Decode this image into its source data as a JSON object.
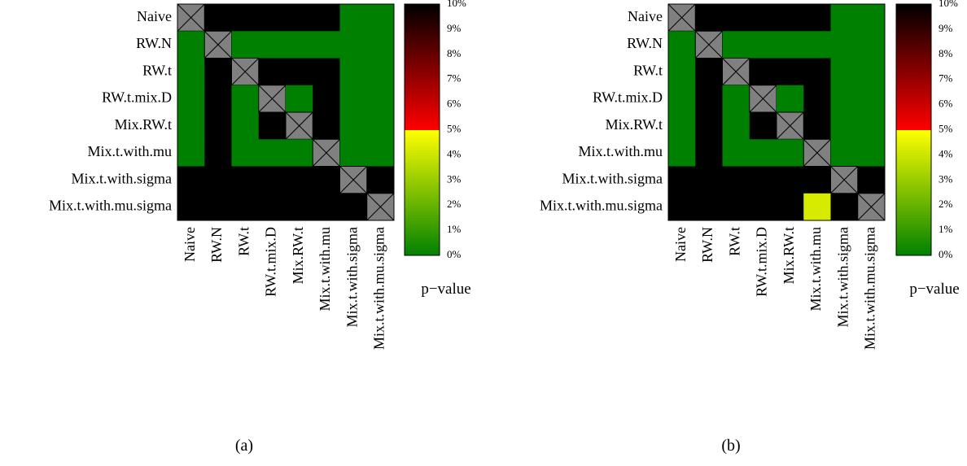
{
  "chart_data": [
    {
      "type": "heatmap",
      "caption": "(a)",
      "labels": [
        "Naive",
        "RW.N",
        "RW.t",
        "RW.t.mix.D",
        "Mix.RW.t",
        "Mix.t.with.mu",
        "Mix.t.with.sigma",
        "Mix.t.with.mu.sigma"
      ],
      "colorbar": {
        "title": "p−value",
        "ticks": [
          "0%",
          "1%",
          "2%",
          "3%",
          "4%",
          "5%",
          "6%",
          "7%",
          "8%",
          "9%",
          "10%"
        ],
        "range": [
          0,
          10
        ],
        "colors": {
          "low": "#008000",
          "mid_low": "#ffff00",
          "mid_high": "#ff0000",
          "high": "#000000"
        }
      },
      "diagonal": "not applicable",
      "matrix": [
        [
          null,
          10,
          10,
          10,
          10,
          10,
          0,
          0
        ],
        [
          0,
          null,
          0,
          0,
          0,
          0,
          0,
          0
        ],
        [
          0,
          10,
          null,
          10,
          10,
          10,
          0,
          0
        ],
        [
          0,
          10,
          0,
          null,
          0,
          10,
          0,
          0
        ],
        [
          0,
          10,
          0,
          10,
          null,
          10,
          0,
          0
        ],
        [
          0,
          10,
          0,
          0,
          0,
          null,
          0,
          0
        ],
        [
          10,
          10,
          10,
          10,
          10,
          10,
          null,
          10
        ],
        [
          10,
          10,
          10,
          10,
          10,
          10,
          10,
          null
        ]
      ]
    },
    {
      "type": "heatmap",
      "caption": "(b)",
      "labels": [
        "Naive",
        "RW.N",
        "RW.t",
        "RW.t.mix.D",
        "Mix.RW.t",
        "Mix.t.with.mu",
        "Mix.t.with.sigma",
        "Mix.t.with.mu.sigma"
      ],
      "colorbar": {
        "title": "p−value",
        "ticks": [
          "0%",
          "1%",
          "2%",
          "3%",
          "4%",
          "5%",
          "6%",
          "7%",
          "8%",
          "9%",
          "10%"
        ],
        "range": [
          0,
          10
        ],
        "colors": {
          "low": "#008000",
          "mid_low": "#ffff00",
          "mid_high": "#ff0000",
          "high": "#000000"
        }
      },
      "diagonal": "not applicable",
      "matrix": [
        [
          null,
          10,
          10,
          10,
          10,
          10,
          0,
          0
        ],
        [
          0,
          null,
          0,
          0,
          0,
          0,
          0,
          0
        ],
        [
          0,
          10,
          null,
          10,
          10,
          10,
          0,
          0
        ],
        [
          0,
          10,
          0,
          null,
          0,
          10,
          0,
          0
        ],
        [
          0,
          10,
          0,
          10,
          null,
          10,
          0,
          0
        ],
        [
          0,
          10,
          0,
          0,
          0,
          null,
          0,
          0
        ],
        [
          10,
          10,
          10,
          10,
          10,
          10,
          null,
          10
        ],
        [
          10,
          10,
          10,
          10,
          10,
          4.2,
          10,
          null
        ]
      ]
    }
  ]
}
